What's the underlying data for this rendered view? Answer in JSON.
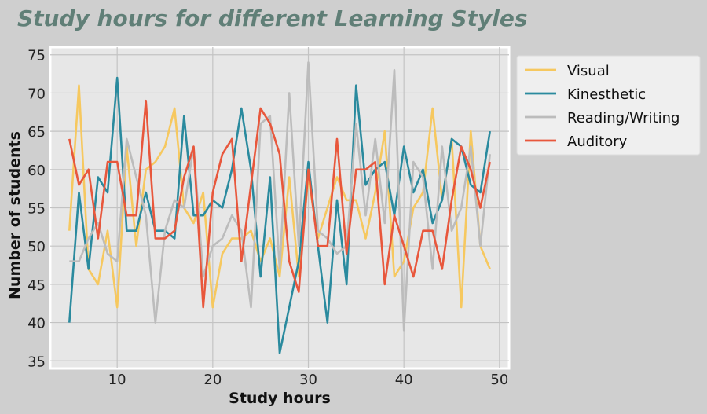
{
  "chart_data": {
    "type": "line",
    "title": "Study hours for different Learning Styles",
    "xlabel": "Study hours",
    "ylabel": "Number of students",
    "xlim": [
      3,
      51
    ],
    "ylim": [
      34,
      76
    ],
    "xticks": [
      10,
      20,
      30,
      40,
      50
    ],
    "yticks": [
      35,
      40,
      45,
      50,
      55,
      60,
      65,
      70,
      75
    ],
    "grid": true,
    "legend_position": "outside-right-top",
    "x": [
      5,
      6,
      7,
      8,
      9,
      10,
      11,
      12,
      13,
      14,
      15,
      16,
      17,
      18,
      19,
      20,
      21,
      22,
      23,
      24,
      25,
      26,
      27,
      28,
      29,
      30,
      31,
      32,
      33,
      34,
      35,
      36,
      37,
      38,
      39,
      40,
      41,
      42,
      43,
      44,
      45,
      46,
      47,
      48,
      49
    ],
    "series": [
      {
        "name": "Visual",
        "color": "#f6c85f",
        "values": [
          52,
          71,
          47,
          45,
          52,
          42,
          63,
          50,
          60,
          61,
          63,
          68,
          55,
          53,
          57,
          42,
          49,
          51,
          51,
          52,
          48,
          51,
          46,
          59,
          46,
          59,
          51,
          55,
          59,
          56,
          56,
          51,
          57,
          65,
          46,
          48,
          55,
          57,
          68,
          56,
          64,
          42,
          65,
          50,
          47
        ]
      },
      {
        "name": "Kinesthetic",
        "color": "#2a8a9e",
        "values": [
          40,
          57,
          47,
          59,
          57,
          72,
          52,
          52,
          57,
          52,
          52,
          51,
          67,
          54,
          54,
          56,
          55,
          60,
          68,
          60,
          46,
          59,
          36,
          42,
          48,
          61,
          50,
          40,
          56,
          45,
          71,
          58,
          60,
          61,
          54,
          63,
          57,
          60,
          53,
          56,
          64,
          63,
          58,
          57,
          65
        ]
      },
      {
        "name": "Reading/Writing",
        "color": "#bcbcbc",
        "values": [
          48,
          48,
          51,
          53,
          49,
          48,
          64,
          59,
          54,
          40,
          52,
          56,
          55,
          63,
          46,
          50,
          51,
          54,
          52,
          42,
          66,
          67,
          47,
          70,
          50,
          74,
          52,
          51,
          49,
          50,
          66,
          54,
          64,
          53,
          73,
          39,
          61,
          59,
          47,
          63,
          52,
          55,
          63,
          50,
          62
        ]
      },
      {
        "name": "Auditory",
        "color": "#e8573c",
        "values": [
          64,
          58,
          60,
          51,
          61,
          61,
          54,
          54,
          69,
          51,
          51,
          52,
          59,
          63,
          42,
          57,
          62,
          64,
          48,
          58,
          68,
          66,
          62,
          48,
          44,
          60,
          50,
          50,
          64,
          49,
          60,
          60,
          61,
          45,
          54,
          50,
          46,
          52,
          52,
          47,
          56,
          63,
          60,
          55,
          61
        ]
      }
    ]
  }
}
